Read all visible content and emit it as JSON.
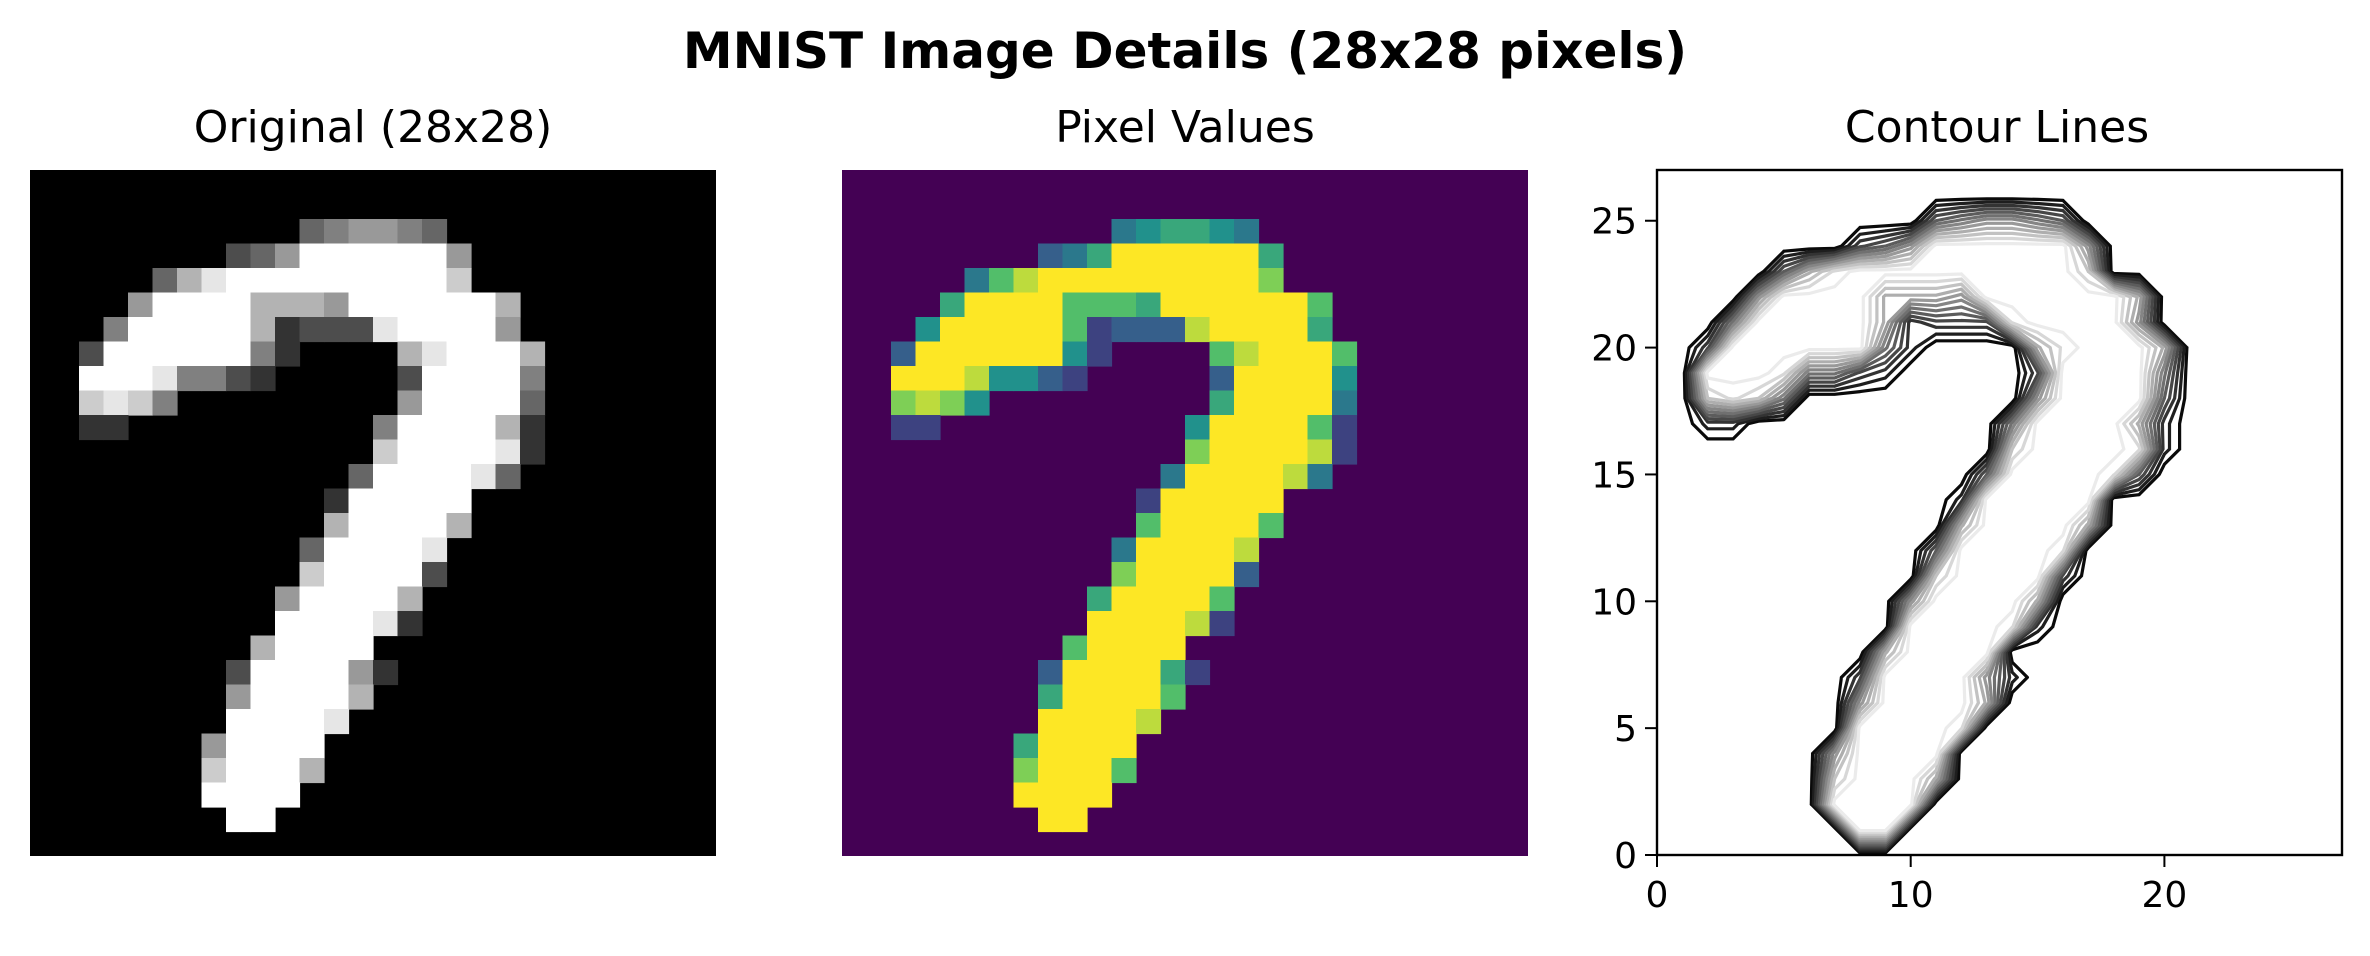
{
  "figure": {
    "suptitle": "MNIST Image Details (28x28 pixels)"
  },
  "chart_data": [
    {
      "type": "heatmap",
      "title": "Original (28x28)",
      "colormap": "gray",
      "axis": "off",
      "image_shape": [
        28,
        28
      ]
    },
    {
      "type": "heatmap",
      "title": "Pixel Values",
      "colormap": "viridis",
      "axis": "off",
      "image_shape": [
        28,
        28
      ]
    },
    {
      "type": "contour",
      "title": "Contour Lines",
      "xlim": [
        0,
        27
      ],
      "ylim": [
        0,
        27
      ],
      "xticks": [
        0,
        10,
        20
      ],
      "yticks": [
        0,
        5,
        10,
        15,
        20,
        25
      ],
      "grid": false,
      "colormap": "gray (dark outer to light inner)"
    }
  ],
  "image_rows": [
    ".........................",
    ".........................",
    "...........345543.........",
    "........2359999995........",
    ".....3689999999997........",
    "....5999966659999996......",
    "...49999961222899995......",
    "..299999941....689996.....",
    "..99984421.....299994.....",
    "..7874.........599993.....",
    "..11..........4999961.....",
    "..............7999981.....",
    ".............3999983......",
    "............199999........",
    "............699996........",
    "...........399998.........",
    "...........799992.........",
    "..........599996..........",
    "..........999981..........",
    ".........69999............",
    "........2999951...........",
    "........599996............",
    "........99998.............",
    ".......59999..............",
    ".......79996..............",
    ".......9999...............",
    "........99................",
    "........................"
  ]
}
